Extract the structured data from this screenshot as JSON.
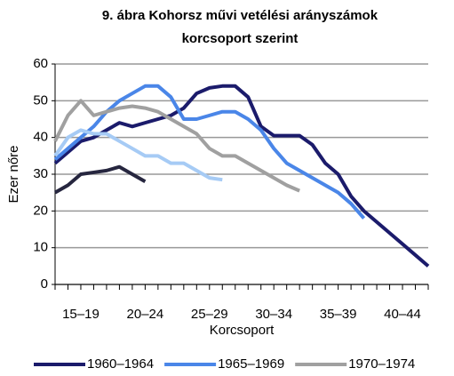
{
  "chart_data": {
    "type": "line",
    "title": [
      "9. ábra Kohorsz művi vetélési arányszámok",
      "korcsoport szerint"
    ],
    "y_label": "Ezer nőre",
    "x_label": "Korcsoport",
    "x": [
      15,
      16,
      17,
      18,
      19,
      20,
      21,
      22,
      23,
      24,
      25,
      26,
      27,
      28,
      29,
      30,
      31,
      32,
      33,
      34,
      35,
      36,
      37,
      38,
      39,
      40,
      41,
      42,
      43,
      44
    ],
    "xlim": [
      15,
      44
    ],
    "xticks": [
      {
        "value": 17,
        "label": "15–19"
      },
      {
        "value": 22,
        "label": "20–24"
      },
      {
        "value": 27,
        "label": "25–29"
      },
      {
        "value": 32,
        "label": "30–34"
      },
      {
        "value": 37,
        "label": "35–39"
      },
      {
        "value": 42,
        "label": "40–44"
      }
    ],
    "ylim": [
      0,
      60
    ],
    "yticks": [
      0,
      10,
      20,
      30,
      40,
      50,
      60
    ],
    "grid": true,
    "series": [
      {
        "name": "1960–1964",
        "color": "#1b1b6b",
        "values": [
          33,
          36,
          39,
          40,
          42,
          44,
          43,
          44,
          45,
          46,
          48,
          52,
          53.5,
          54,
          54,
          51,
          43,
          40.5,
          40.5,
          40.5,
          38,
          33,
          30,
          24,
          20,
          17,
          14,
          11,
          8,
          5
        ]
      },
      {
        "name": "1965–1969",
        "color": "#4a86e8",
        "values": [
          34,
          37,
          40,
          43,
          47,
          50,
          52,
          54,
          54,
          51,
          45,
          45,
          46,
          47,
          47,
          45,
          42,
          37,
          33,
          31,
          29,
          27,
          25,
          22,
          18,
          null,
          null,
          null,
          null,
          null
        ]
      },
      {
        "name": "1970–1974",
        "color": "#a0a0a0",
        "values": [
          39,
          46,
          50,
          46,
          47,
          48,
          48.5,
          48,
          47,
          45,
          43,
          41,
          37,
          35,
          35,
          33,
          31,
          29,
          27,
          25.5,
          null,
          null,
          null,
          null,
          null,
          null,
          null,
          null,
          null,
          null
        ]
      },
      {
        "color": "#a6cbf5",
        "values": [
          35,
          40,
          42,
          41,
          41,
          39,
          37,
          35,
          35,
          33,
          33,
          31,
          29,
          28.5,
          null,
          null,
          null,
          null,
          null,
          null,
          null,
          null,
          null,
          null,
          null,
          null,
          null,
          null,
          null,
          null
        ]
      },
      {
        "color": "#26263f",
        "values": [
          25,
          27,
          30,
          30.5,
          31,
          32,
          30,
          28,
          null,
          null,
          null,
          null,
          null,
          null,
          null,
          null,
          null,
          null,
          null,
          null,
          null,
          null,
          null,
          null,
          null,
          null,
          null,
          null,
          null,
          null
        ]
      }
    ]
  }
}
